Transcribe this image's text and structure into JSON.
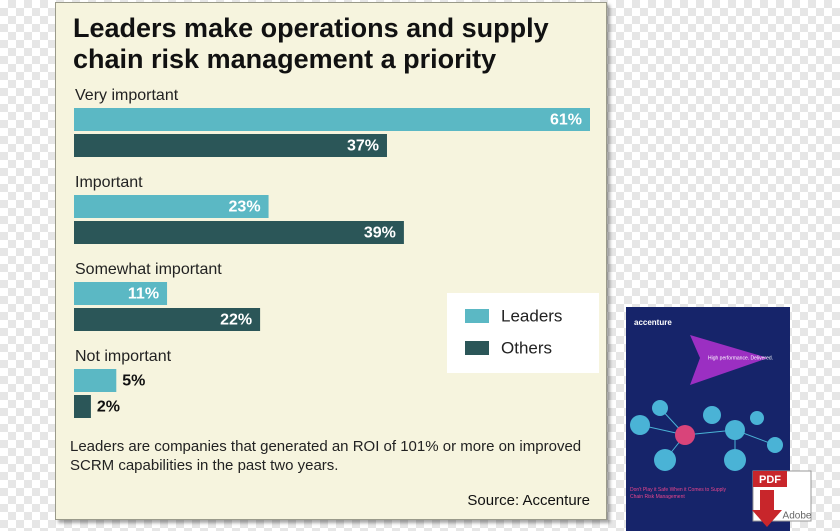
{
  "chart_data": {
    "type": "bar",
    "orientation": "horizontal",
    "title": "Leaders make operations and supply chain risk management a priority",
    "categories": [
      "Very important",
      "Important",
      "Somewhat important",
      "Not important"
    ],
    "series": [
      {
        "name": "Leaders",
        "color": "#5bb8c4",
        "values": [
          61,
          23,
          11,
          5
        ],
        "value_labels": [
          "61%",
          "23%",
          "11%",
          "5%"
        ]
      },
      {
        "name": "Others",
        "color": "#2b5658",
        "values": [
          37,
          39,
          22,
          2
        ],
        "value_labels": [
          "37%",
          "39%",
          "22%",
          "2%"
        ]
      }
    ],
    "legend_position": "right",
    "note": "Leaders are companies that generated an ROI of 101% or more on improved SCRM capabilities in the past two years.",
    "source": "Source: Accenture"
  },
  "cover": {
    "brand": "accenture",
    "tagline": "High performance. Delivered.",
    "title": "Don't Play it Safe When it Comes to Supply Chain Risk Management"
  },
  "pdf_icon": {
    "label": "PDF",
    "brand": "Adobe"
  }
}
